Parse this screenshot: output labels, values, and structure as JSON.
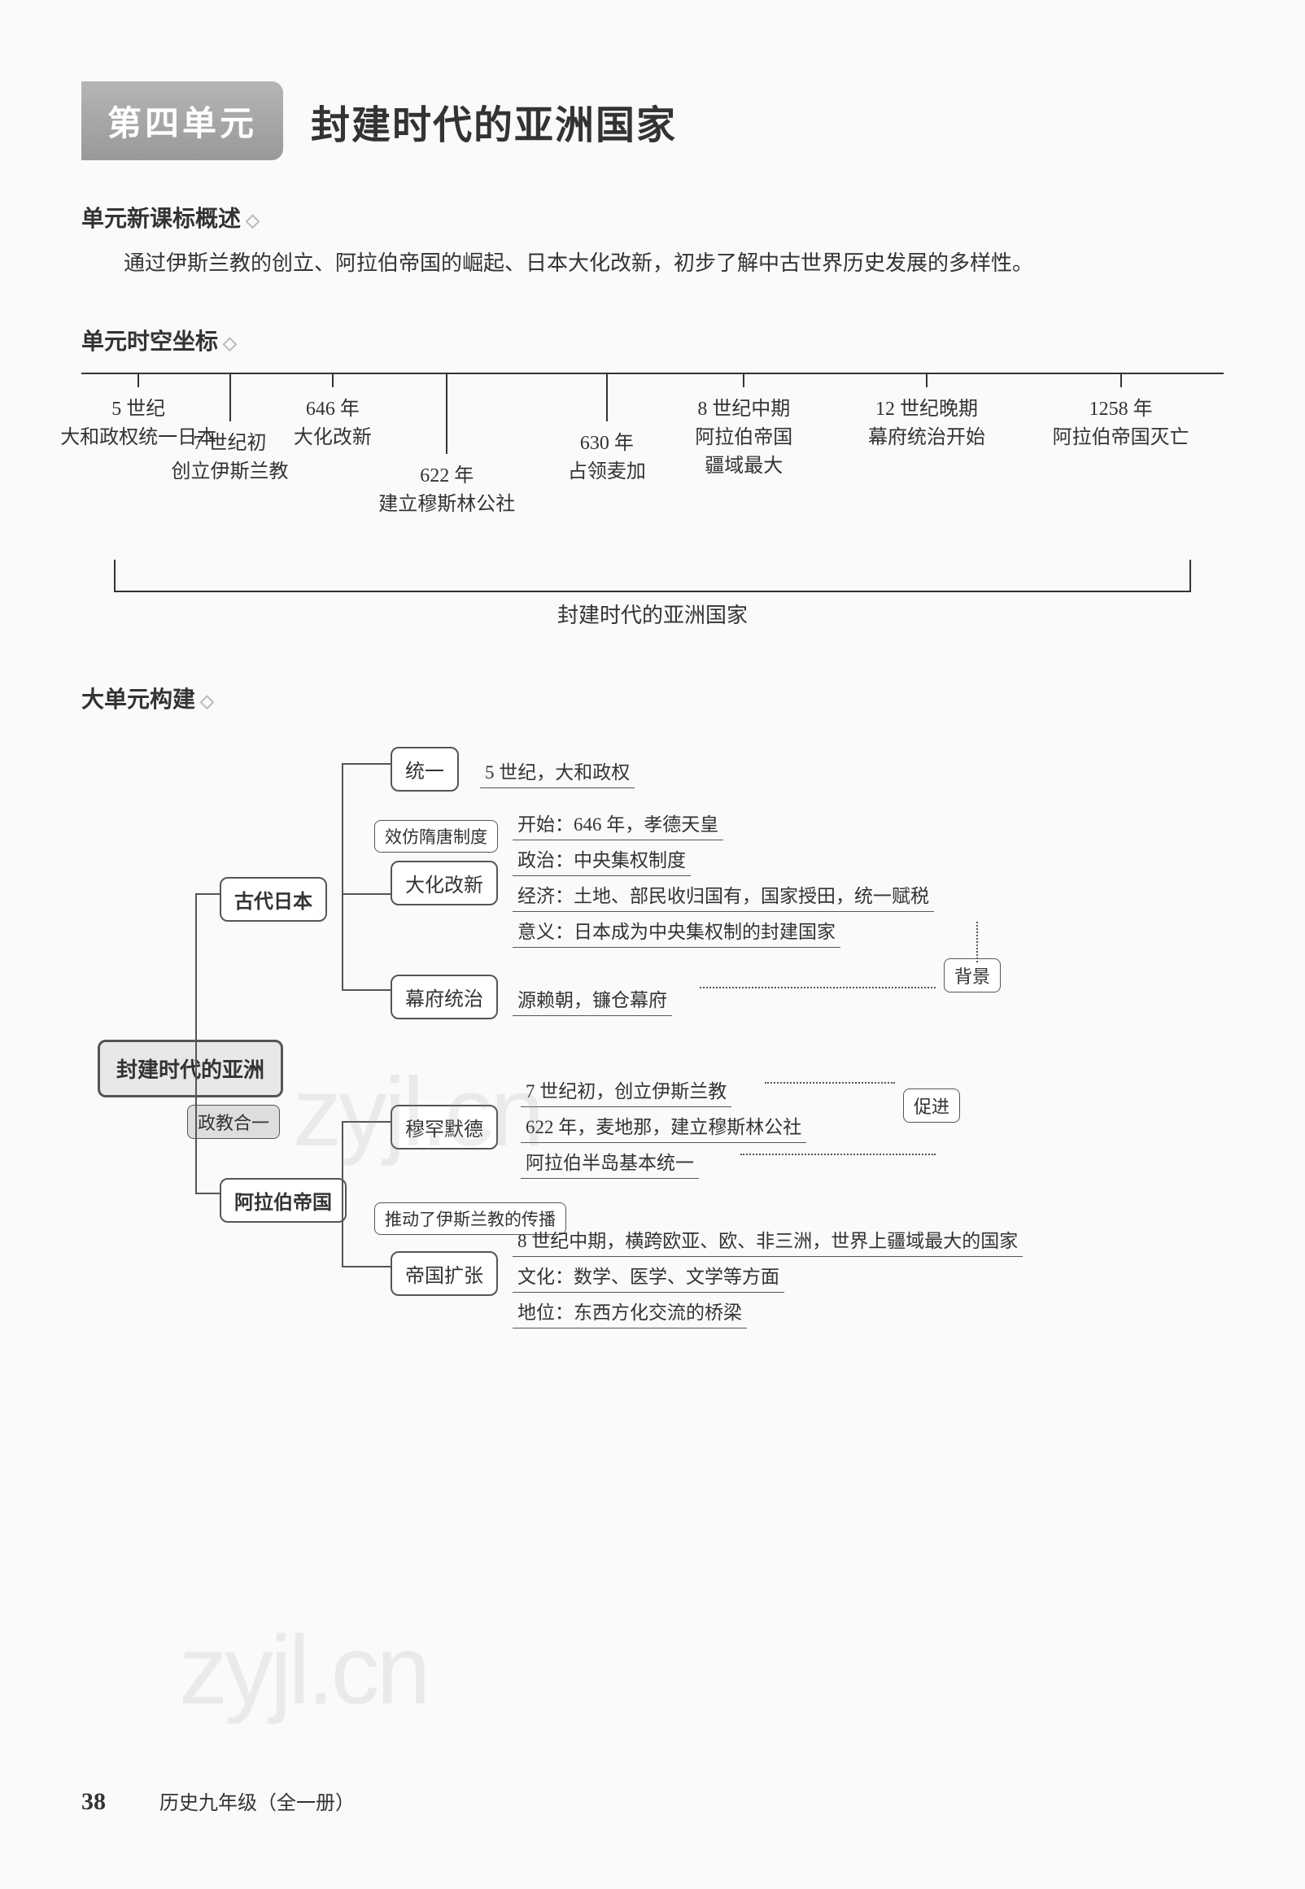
{
  "header": {
    "unit_badge": "第四单元",
    "unit_title": "封建时代的亚洲国家"
  },
  "sections": {
    "overview_heading": "单元新课标概述",
    "overview_text": "通过伊斯兰教的创立、阿拉伯帝国的崛起、日本大化改新，初步了解中古世界历史发展的多样性。",
    "timeline_heading": "单元时空坐标",
    "mindmap_heading": "大单元构建"
  },
  "timeline": {
    "events": [
      {
        "date": "5 世纪",
        "desc": "大和政权统一日本",
        "left_pct": 5,
        "tick": "short"
      },
      {
        "date": "7 世纪初",
        "desc": "创立伊斯兰教",
        "left_pct": 13,
        "tick": "med"
      },
      {
        "date": "646 年",
        "desc": "大化改新",
        "left_pct": 22,
        "tick": "short"
      },
      {
        "date": "622 年",
        "desc": "建立穆斯林公社",
        "left_pct": 32,
        "tick": "long"
      },
      {
        "date": "630 年",
        "desc": "占领麦加",
        "left_pct": 46,
        "tick": "med"
      },
      {
        "date": "8 世纪中期",
        "desc": "阿拉伯帝国\n疆域最大",
        "left_pct": 58,
        "tick": "short",
        "multi": true
      },
      {
        "date": "12 世纪晚期",
        "desc": "幕府统治开始",
        "left_pct": 74,
        "tick": "short"
      },
      {
        "date": "1258 年",
        "desc": "阿拉伯帝国灭亡",
        "left_pct": 91,
        "tick": "short"
      }
    ],
    "bracket_label": "封建时代的亚洲国家"
  },
  "mindmap": {
    "root": "封建时代的亚洲",
    "root_link": "政教合一",
    "branches": [
      {
        "label": "古代日本",
        "children": [
          {
            "label": "统一",
            "items": [
              "5 世纪，大和政权"
            ]
          },
          {
            "tag": "效仿隋唐制度",
            "label": "大化改新",
            "items": [
              "开始：646 年，孝德天皇",
              "政治：中央集权制度",
              "经济：土地、部民收归国有，国家授田，统一赋税",
              "意义：日本成为中央集权制的封建国家"
            ],
            "badge": "背景"
          },
          {
            "label": "幕府统治",
            "items": [
              "源赖朝，镰仓幕府"
            ]
          }
        ]
      },
      {
        "label": "阿拉伯帝国",
        "children": [
          {
            "label": "穆罕默德",
            "items": [
              "7 世纪初，创立伊斯兰教",
              "622 年，麦地那，建立穆斯林公社",
              "阿拉伯半岛基本统一"
            ],
            "badge": "促进"
          },
          {
            "tag": "推动了伊斯兰教的传播",
            "label": "帝国扩张",
            "items": [
              "8 世纪中期，横跨欧亚、欧、非三洲，世界上疆域最大的国家",
              "文化：数学、医学、文学等方面",
              "地位：东西方化交流的桥梁"
            ]
          }
        ]
      }
    ]
  },
  "watermarks": {
    "wm1": "zyjl.cn",
    "wm2": "zyjl.cn"
  },
  "footer": {
    "page_num": "38",
    "book_info": "历史九年级（全一册）"
  },
  "colors": {
    "badge_bg": "#a8a8a8",
    "text": "#333333",
    "line": "#555555",
    "background": "#fafafa"
  }
}
